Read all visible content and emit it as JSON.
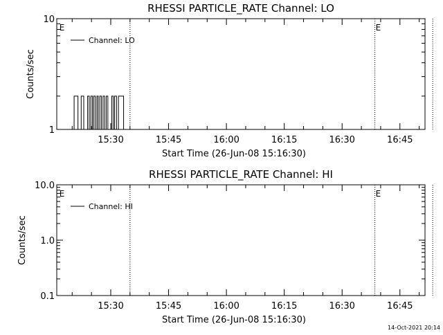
{
  "footer": {
    "timestamp": "14-Oct-2021 20:14"
  },
  "chart_data": [
    {
      "type": "line",
      "title": "RHESSI PARTICLE_RATE Channel: LO",
      "xlabel": "Start Time (26-Jun-08 15:16:30)",
      "ylabel": "Counts/sec",
      "yscale": "log",
      "ylim": [
        1,
        10
      ],
      "y_ticks": [
        "1",
        "10"
      ],
      "xlim_seconds_after_1516": [
        0,
        5730
      ],
      "x_ticks": [
        "15:30",
        "15:45",
        "16:00",
        "16:15",
        "16:30",
        "16:45"
      ],
      "event_markers": [
        {
          "label": "E",
          "time": "15:16:30",
          "line": false
        },
        {
          "label": "",
          "time": "15:35:00",
          "line": true
        },
        {
          "label": "E",
          "time": "16:38:30",
          "line": true
        },
        {
          "label": "",
          "time": "16:53:30",
          "line": true
        }
      ],
      "legend": {
        "position": "top-left",
        "entries": [
          "Channel: LO"
        ]
      },
      "series": [
        {
          "name": "Channel: LO",
          "steps": [
            [
              "15:20:00",
              1
            ],
            [
              "15:20:30",
              2
            ],
            [
              "15:21:30",
              1
            ],
            [
              "15:22:20",
              2
            ],
            [
              "15:23:00",
              1
            ],
            [
              "15:24:00",
              2
            ],
            [
              "15:24:25",
              1
            ],
            [
              "15:24:50",
              2
            ],
            [
              "15:25:15",
              1
            ],
            [
              "15:25:35",
              2
            ],
            [
              "15:26:00",
              1
            ],
            [
              "15:26:25",
              2
            ],
            [
              "15:26:45",
              1
            ],
            [
              "15:27:10",
              2
            ],
            [
              "15:27:35",
              1
            ],
            [
              "15:28:00",
              2
            ],
            [
              "15:28:25",
              1
            ],
            [
              "15:28:50",
              2
            ],
            [
              "15:29:15",
              1
            ],
            [
              "15:30:15",
              2
            ],
            [
              "15:30:40",
              1
            ],
            [
              "15:31:00",
              2
            ],
            [
              "15:31:30",
              1
            ],
            [
              "15:32:00",
              2
            ],
            [
              "15:33:20",
              1
            ],
            [
              "15:34:30",
              1
            ]
          ]
        }
      ]
    },
    {
      "type": "line",
      "title": "RHESSI PARTICLE_RATE Channel: HI",
      "xlabel": "Start Time (26-Jun-08 15:16:30)",
      "ylabel": "Counts/sec",
      "yscale": "log",
      "ylim": [
        0.1,
        10
      ],
      "y_ticks": [
        "0.1",
        "1.0",
        "10.0"
      ],
      "xlim_seconds_after_1516": [
        0,
        5730
      ],
      "x_ticks": [
        "15:30",
        "15:45",
        "16:00",
        "16:15",
        "16:30",
        "16:45"
      ],
      "event_markers": [
        {
          "label": "E",
          "time": "15:16:30",
          "line": false
        },
        {
          "label": "",
          "time": "15:35:00",
          "line": true
        },
        {
          "label": "E",
          "time": "16:38:30",
          "line": true
        },
        {
          "label": "",
          "time": "16:53:30",
          "line": true
        }
      ],
      "legend": {
        "position": "top-left",
        "entries": [
          "Channel: HI"
        ]
      },
      "series": [
        {
          "name": "Channel: HI",
          "steps": []
        }
      ]
    }
  ]
}
